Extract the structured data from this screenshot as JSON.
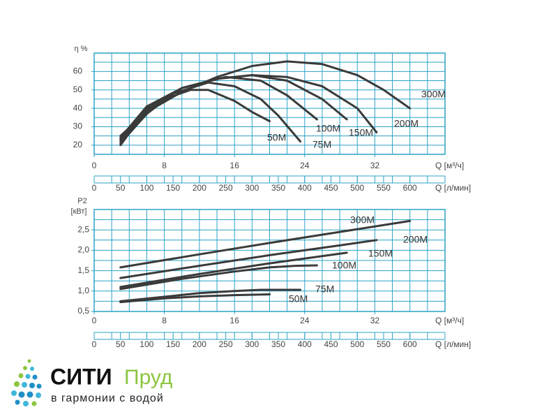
{
  "chart_data": [
    {
      "type": "line",
      "xlabel": "Q [м³/ч]",
      "x2label": "Q [л/мин]",
      "ylabel": "η %",
      "xlim": [
        0,
        40
      ],
      "xticks": [
        0,
        8,
        16,
        24,
        32
      ],
      "x2lim": [
        0,
        666.7
      ],
      "x2ticks": [
        0,
        50,
        100,
        150,
        200,
        250,
        300,
        350,
        400,
        450,
        500,
        550,
        600
      ],
      "ylim": [
        15,
        70
      ],
      "yticks": [
        20,
        30,
        40,
        50,
        60
      ],
      "grid": true,
      "grid_step": {
        "x": 2,
        "y": 5
      },
      "grid_color": "#2ba3c6",
      "line_color": "#3a3a3a",
      "series": [
        {
          "name": "50M",
          "x": [
            3,
            5,
            8,
            11,
            13,
            16,
            18,
            20
          ],
          "values": [
            20,
            33,
            45,
            50,
            50,
            44,
            38,
            33
          ]
        },
        {
          "name": "75M",
          "x": [
            3,
            6,
            9,
            13,
            16,
            19,
            21,
            23.5
          ],
          "values": [
            21,
            37,
            48,
            54,
            52,
            45,
            36,
            22
          ]
        },
        {
          "name": "100M",
          "x": [
            3,
            6,
            10,
            15,
            19,
            22,
            25.4
          ],
          "values": [
            22,
            39,
            51,
            57,
            55,
            47,
            34
          ]
        },
        {
          "name": "150M",
          "x": [
            3,
            6,
            10,
            14,
            18,
            22,
            26,
            28.8
          ],
          "values": [
            23,
            40,
            51,
            56,
            58,
            55,
            45,
            34
          ]
        },
        {
          "name": "200M",
          "x": [
            3,
            6,
            10,
            14,
            18,
            22,
            26,
            30,
            32.2
          ],
          "values": [
            24,
            41,
            51,
            56,
            58,
            57,
            52,
            40,
            27
          ]
        },
        {
          "name": "300M",
          "x": [
            3,
            6,
            10,
            14,
            18,
            22,
            26,
            30,
            33,
            36
          ],
          "values": [
            25,
            38,
            49,
            57,
            63,
            65.5,
            64,
            58,
            50,
            40
          ]
        }
      ]
    },
    {
      "type": "line",
      "xlabel": "Q [м³/ч]",
      "x2label": "Q [л/мин]",
      "ylabel": "P2",
      "yunit": "[кВт]",
      "xlim": [
        0,
        40
      ],
      "xticks": [
        0,
        8,
        16,
        24,
        32
      ],
      "x2lim": [
        0,
        666.7
      ],
      "x2ticks": [
        0,
        50,
        100,
        150,
        200,
        250,
        300,
        350,
        400,
        450,
        500,
        550,
        600
      ],
      "ylim": [
        0.5,
        3.0
      ],
      "yticks": [
        {
          "value": 0.5,
          "label": "0,5"
        },
        {
          "value": 1.0,
          "label": "1,0"
        },
        {
          "value": 1.5,
          "label": "1,5"
        },
        {
          "value": 2.0,
          "label": "2,0"
        },
        {
          "value": 2.5,
          "label": "2,5"
        }
      ],
      "grid": true,
      "grid_step": {
        "x": 2,
        "y": 0.25
      },
      "grid_color": "#2ba3c6",
      "line_color": "#3a3a3a",
      "series": [
        {
          "name": "50M",
          "x": [
            3,
            8,
            12,
            16,
            20
          ],
          "values": [
            0.73,
            0.82,
            0.87,
            0.9,
            0.92
          ]
        },
        {
          "name": "75M",
          "x": [
            3,
            8,
            12,
            16,
            19,
            23.5
          ],
          "values": [
            0.75,
            0.86,
            0.95,
            1.0,
            1.03,
            1.03
          ]
        },
        {
          "name": "100M",
          "x": [
            3,
            10,
            16,
            20,
            23,
            25.4
          ],
          "values": [
            1.05,
            1.3,
            1.48,
            1.58,
            1.62,
            1.63
          ]
        },
        {
          "name": "150M",
          "x": [
            3,
            12,
            20,
            28.8
          ],
          "values": [
            1.1,
            1.42,
            1.68,
            1.94
          ]
        },
        {
          "name": "200M",
          "x": [
            3,
            12,
            20,
            28,
            32.2
          ],
          "values": [
            1.32,
            1.62,
            1.88,
            2.12,
            2.25
          ]
        },
        {
          "name": "300M",
          "x": [
            3,
            12,
            20,
            28,
            36
          ],
          "values": [
            1.58,
            1.9,
            2.18,
            2.45,
            2.72
          ]
        }
      ]
    }
  ],
  "logo": {
    "name": "СИТИ",
    "name2": "Пруд",
    "tagline": "в гармонии с водой"
  }
}
